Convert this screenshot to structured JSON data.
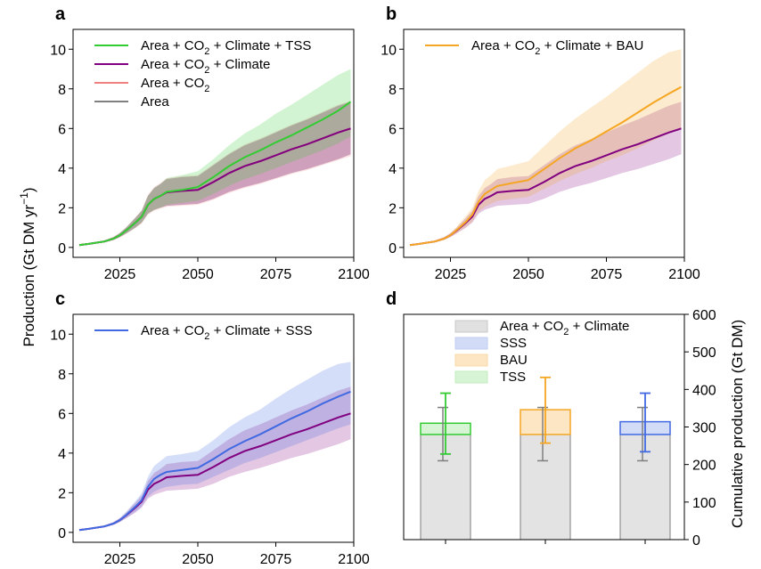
{
  "figure": {
    "y_axis_title_left": "Production (Gt DM yr",
    "y_axis_title_left_sup": "−1",
    "y_axis_title_left_close": ")",
    "y_axis_title_right": "Cumulative production (Gt DM)"
  },
  "chart_data": [
    {
      "id": "a",
      "panel_letter": "a",
      "type": "line",
      "xlim": [
        2010,
        2100
      ],
      "ylim": [
        -0.5,
        11
      ],
      "x_ticks": [
        2025,
        2050,
        2075,
        2100
      ],
      "y_ticks": [
        0,
        2,
        4,
        6,
        8,
        10
      ],
      "x_tick_labels": [
        "2025",
        "2050",
        "2075",
        "2100"
      ],
      "y_tick_labels": [
        "0",
        "2",
        "4",
        "6",
        "8",
        "10"
      ],
      "legend_position": "top-left",
      "x": [
        2012,
        2015,
        2020,
        2023,
        2025,
        2027,
        2030,
        2032,
        2034,
        2036,
        2038,
        2040,
        2045,
        2050,
        2055,
        2060,
        2065,
        2070,
        2075,
        2080,
        2085,
        2090,
        2095,
        2099
      ],
      "series": [
        {
          "name": "Area",
          "legend": "Area",
          "color": "#808080",
          "values": [
            0.12,
            0.18,
            0.3,
            0.45,
            0.62,
            0.85,
            1.25,
            1.55,
            2.15,
            2.45,
            2.6,
            2.78,
            2.85,
            2.9,
            3.3,
            3.75,
            4.1,
            4.35,
            4.65,
            4.95,
            5.2,
            5.5,
            5.8,
            6.0
          ],
          "band_low": [
            0.1,
            0.15,
            0.25,
            0.38,
            0.52,
            0.7,
            1.0,
            1.25,
            1.7,
            1.9,
            2.0,
            2.1,
            2.15,
            2.2,
            2.45,
            2.8,
            3.05,
            3.25,
            3.5,
            3.75,
            3.95,
            4.2,
            4.45,
            4.7
          ],
          "band_high": [
            0.14,
            0.21,
            0.35,
            0.52,
            0.72,
            1.0,
            1.5,
            1.85,
            2.6,
            3.0,
            3.2,
            3.45,
            3.55,
            3.6,
            4.15,
            4.7,
            5.15,
            5.45,
            5.8,
            6.15,
            6.45,
            6.8,
            7.15,
            7.35
          ]
        },
        {
          "name": "Area + CO2",
          "legend_main": "Area + CO",
          "legend_sub": "2",
          "legend_tail": "",
          "color": "#f08080",
          "values": [
            0.12,
            0.18,
            0.3,
            0.45,
            0.62,
            0.85,
            1.25,
            1.55,
            2.15,
            2.45,
            2.6,
            2.78,
            2.85,
            2.9,
            3.3,
            3.75,
            4.1,
            4.35,
            4.65,
            4.95,
            5.2,
            5.5,
            5.8,
            6.0
          ],
          "band_low": [
            0.1,
            0.15,
            0.24,
            0.36,
            0.5,
            0.68,
            0.98,
            1.2,
            1.65,
            1.85,
            1.95,
            2.05,
            2.1,
            2.15,
            2.4,
            2.75,
            3.0,
            3.2,
            3.45,
            3.7,
            3.9,
            4.15,
            4.4,
            4.6
          ],
          "band_high": [
            0.14,
            0.21,
            0.36,
            0.54,
            0.74,
            1.02,
            1.52,
            1.88,
            2.65,
            3.05,
            3.25,
            3.5,
            3.6,
            3.65,
            4.2,
            4.75,
            5.2,
            5.5,
            5.85,
            6.2,
            6.5,
            6.85,
            7.2,
            7.4
          ]
        },
        {
          "name": "Area + CO2 + Climate",
          "legend_main": "Area + CO",
          "legend_sub": "2",
          "legend_tail": " + Climate",
          "color": "#800080",
          "values": [
            0.12,
            0.18,
            0.3,
            0.45,
            0.62,
            0.85,
            1.25,
            1.55,
            2.15,
            2.45,
            2.6,
            2.78,
            2.85,
            2.9,
            3.3,
            3.75,
            4.1,
            4.35,
            4.65,
            4.95,
            5.2,
            5.5,
            5.8,
            6.0
          ],
          "band_low": [
            0.1,
            0.15,
            0.25,
            0.38,
            0.52,
            0.7,
            1.0,
            1.25,
            1.7,
            1.9,
            2.0,
            2.1,
            2.15,
            2.2,
            2.45,
            2.8,
            3.05,
            3.25,
            3.5,
            3.75,
            3.95,
            4.2,
            4.45,
            4.7
          ],
          "band_high": [
            0.14,
            0.21,
            0.35,
            0.52,
            0.72,
            1.0,
            1.5,
            1.85,
            2.6,
            3.0,
            3.2,
            3.45,
            3.55,
            3.6,
            4.15,
            4.7,
            5.15,
            5.45,
            5.8,
            6.15,
            6.45,
            6.8,
            7.15,
            7.35
          ]
        },
        {
          "name": "Area + CO2 + Climate + TSS",
          "legend_main": "Area + CO",
          "legend_sub": "2",
          "legend_tail": " + Climate + TSS",
          "color": "#33cc33",
          "values": [
            0.12,
            0.18,
            0.3,
            0.45,
            0.62,
            0.85,
            1.25,
            1.55,
            2.15,
            2.45,
            2.6,
            2.8,
            2.9,
            3.05,
            3.55,
            4.1,
            4.55,
            4.9,
            5.3,
            5.65,
            6.05,
            6.45,
            6.9,
            7.35
          ],
          "band_low": [
            0.1,
            0.15,
            0.25,
            0.38,
            0.52,
            0.7,
            1.0,
            1.25,
            1.7,
            1.9,
            2.0,
            2.15,
            2.25,
            2.35,
            2.7,
            3.1,
            3.45,
            3.7,
            4.0,
            4.3,
            4.6,
            4.9,
            5.25,
            5.6
          ],
          "band_high": [
            0.14,
            0.21,
            0.35,
            0.52,
            0.72,
            1.0,
            1.5,
            1.85,
            2.6,
            3.0,
            3.2,
            3.5,
            3.65,
            3.85,
            4.45,
            5.15,
            5.75,
            6.2,
            6.75,
            7.2,
            7.7,
            8.2,
            8.7,
            9.0
          ]
        }
      ]
    },
    {
      "id": "b",
      "panel_letter": "b",
      "type": "line",
      "xlim": [
        2010,
        2100
      ],
      "ylim": [
        -0.5,
        11
      ],
      "x_ticks": [
        2025,
        2050,
        2075,
        2100
      ],
      "y_ticks": [
        0,
        2,
        4,
        6,
        8,
        10
      ],
      "x_tick_labels": [
        "2025",
        "2050",
        "2075",
        "2100"
      ],
      "y_tick_labels": [
        "0",
        "2",
        "4",
        "6",
        "8",
        "10"
      ],
      "legend_position": "top-left",
      "x": [
        2012,
        2015,
        2020,
        2023,
        2025,
        2027,
        2030,
        2032,
        2034,
        2036,
        2038,
        2040,
        2045,
        2050,
        2055,
        2060,
        2065,
        2070,
        2075,
        2080,
        2085,
        2090,
        2095,
        2099
      ],
      "series": [
        {
          "name": "Area + CO2 + Climate",
          "color": "#800080",
          "values": [
            0.12,
            0.18,
            0.3,
            0.45,
            0.62,
            0.85,
            1.25,
            1.55,
            2.15,
            2.45,
            2.6,
            2.78,
            2.85,
            2.9,
            3.3,
            3.75,
            4.1,
            4.35,
            4.65,
            4.95,
            5.2,
            5.5,
            5.8,
            6.0
          ],
          "band_low": [
            0.1,
            0.15,
            0.25,
            0.38,
            0.52,
            0.7,
            1.0,
            1.25,
            1.7,
            1.9,
            2.0,
            2.1,
            2.15,
            2.2,
            2.45,
            2.8,
            3.05,
            3.25,
            3.5,
            3.75,
            3.95,
            4.2,
            4.45,
            4.7
          ],
          "band_high": [
            0.14,
            0.21,
            0.35,
            0.52,
            0.72,
            1.0,
            1.5,
            1.85,
            2.6,
            3.0,
            3.2,
            3.45,
            3.55,
            3.6,
            4.15,
            4.7,
            5.15,
            5.45,
            5.8,
            6.15,
            6.45,
            6.8,
            7.15,
            7.35
          ]
        },
        {
          "name": "Area + CO2 + Climate + BAU",
          "legend_main": "Area + CO",
          "legend_sub": "2",
          "legend_tail": " + Climate + BAU",
          "color": "#f5a623",
          "values": [
            0.12,
            0.18,
            0.3,
            0.45,
            0.62,
            0.88,
            1.3,
            1.65,
            2.3,
            2.7,
            2.9,
            3.1,
            3.25,
            3.4,
            3.95,
            4.5,
            5.0,
            5.4,
            5.85,
            6.3,
            6.8,
            7.3,
            7.75,
            8.1
          ],
          "band_low": [
            0.1,
            0.15,
            0.25,
            0.38,
            0.52,
            0.72,
            1.05,
            1.3,
            1.8,
            2.05,
            2.2,
            2.35,
            2.45,
            2.55,
            2.95,
            3.35,
            3.7,
            4.0,
            4.35,
            4.65,
            5.0,
            5.4,
            5.75,
            6.0
          ],
          "band_high": [
            0.14,
            0.21,
            0.35,
            0.52,
            0.72,
            1.05,
            1.6,
            2.0,
            2.85,
            3.4,
            3.65,
            3.95,
            4.15,
            4.35,
            5.1,
            5.85,
            6.5,
            7.05,
            7.6,
            8.2,
            8.8,
            9.4,
            9.85,
            10.0
          ]
        }
      ]
    },
    {
      "id": "c",
      "panel_letter": "c",
      "type": "line",
      "xlim": [
        2010,
        2100
      ],
      "ylim": [
        -0.5,
        11
      ],
      "x_ticks": [
        2025,
        2050,
        2075,
        2100
      ],
      "y_ticks": [
        0,
        2,
        4,
        6,
        8,
        10
      ],
      "x_tick_labels": [
        "2025",
        "2050",
        "2075",
        "2100"
      ],
      "y_tick_labels": [
        "0",
        "2",
        "4",
        "6",
        "8",
        "10"
      ],
      "legend_position": "top-left",
      "x": [
        2012,
        2015,
        2020,
        2023,
        2025,
        2027,
        2030,
        2032,
        2034,
        2036,
        2038,
        2040,
        2045,
        2050,
        2055,
        2060,
        2065,
        2070,
        2075,
        2080,
        2085,
        2090,
        2095,
        2099
      ],
      "series": [
        {
          "name": "Area + CO2 + Climate",
          "color": "#800080",
          "values": [
            0.12,
            0.18,
            0.3,
            0.45,
            0.62,
            0.85,
            1.25,
            1.55,
            2.15,
            2.45,
            2.6,
            2.78,
            2.85,
            2.9,
            3.3,
            3.75,
            4.1,
            4.35,
            4.65,
            4.95,
            5.2,
            5.5,
            5.8,
            6.0
          ],
          "band_low": [
            0.1,
            0.15,
            0.25,
            0.38,
            0.52,
            0.7,
            1.0,
            1.25,
            1.7,
            1.9,
            2.0,
            2.1,
            2.15,
            2.2,
            2.45,
            2.8,
            3.05,
            3.25,
            3.5,
            3.75,
            3.95,
            4.2,
            4.45,
            4.7
          ],
          "band_high": [
            0.14,
            0.21,
            0.35,
            0.52,
            0.72,
            1.0,
            1.5,
            1.85,
            2.6,
            3.0,
            3.2,
            3.45,
            3.55,
            3.6,
            4.15,
            4.7,
            5.15,
            5.45,
            5.8,
            6.15,
            6.45,
            6.8,
            7.15,
            7.35
          ]
        },
        {
          "name": "Area + CO2 + Climate + SSS",
          "legend_main": "Area + CO",
          "legend_sub": "2",
          "legend_tail": " + Climate + SSS",
          "color": "#4169e1",
          "values": [
            0.12,
            0.18,
            0.3,
            0.45,
            0.62,
            0.87,
            1.3,
            1.62,
            2.3,
            2.7,
            2.9,
            3.05,
            3.15,
            3.25,
            3.7,
            4.2,
            4.6,
            4.95,
            5.35,
            5.75,
            6.1,
            6.5,
            6.85,
            7.1
          ],
          "band_low": [
            0.1,
            0.15,
            0.25,
            0.38,
            0.52,
            0.72,
            1.05,
            1.3,
            1.8,
            2.05,
            2.2,
            2.3,
            2.4,
            2.45,
            2.8,
            3.15,
            3.5,
            3.75,
            4.05,
            4.35,
            4.65,
            4.95,
            5.25,
            5.45
          ],
          "band_high": [
            0.14,
            0.21,
            0.35,
            0.52,
            0.72,
            1.04,
            1.58,
            1.98,
            2.8,
            3.35,
            3.6,
            3.85,
            3.95,
            4.1,
            4.65,
            5.3,
            5.8,
            6.2,
            6.75,
            7.25,
            7.7,
            8.15,
            8.5,
            8.6
          ]
        }
      ]
    },
    {
      "id": "d",
      "panel_letter": "d",
      "type": "bar",
      "ylim": [
        0,
        600
      ],
      "y_axis_side": "right",
      "y_ticks": [
        0,
        100,
        200,
        300,
        400,
        500,
        600
      ],
      "y_tick_labels": [
        "0",
        "100",
        "200",
        "300",
        "400",
        "500",
        "600"
      ],
      "legend_position": "top-center",
      "legend": [
        {
          "label_main": "Area + CO",
          "label_sub": "2",
          "label_tail": " + Climate",
          "color": "#e0e0e0",
          "edge": "#c8c8c8"
        },
        {
          "label_main": "SSS",
          "label_sub": "",
          "label_tail": "",
          "color": "#d3dcf6",
          "edge": "#c2cdf2"
        },
        {
          "label_main": "BAU",
          "label_sub": "",
          "label_tail": "",
          "color": "#fde6c4",
          "edge": "#f8d8a8"
        },
        {
          "label_main": "TSS",
          "label_sub": "",
          "label_tail": "",
          "color": "#d7f5d4",
          "edge": "#c0ecbc"
        }
      ],
      "categories": [
        "TSS",
        "BAU",
        "SSS"
      ],
      "base_values": [
        280,
        280,
        280
      ],
      "base_error": [
        [
          210,
          352
        ],
        [
          210,
          352
        ],
        [
          210,
          352
        ]
      ],
      "totals": [
        310,
        346,
        314
      ],
      "total_error": [
        [
          228,
          390
        ],
        [
          257,
          432
        ],
        [
          234,
          390
        ]
      ],
      "colors": [
        "#33cc33",
        "#f5a623",
        "#4169e1"
      ],
      "fill_colors": [
        "#d7f5d4",
        "#fde6c4",
        "#d3dcf6"
      ]
    }
  ]
}
